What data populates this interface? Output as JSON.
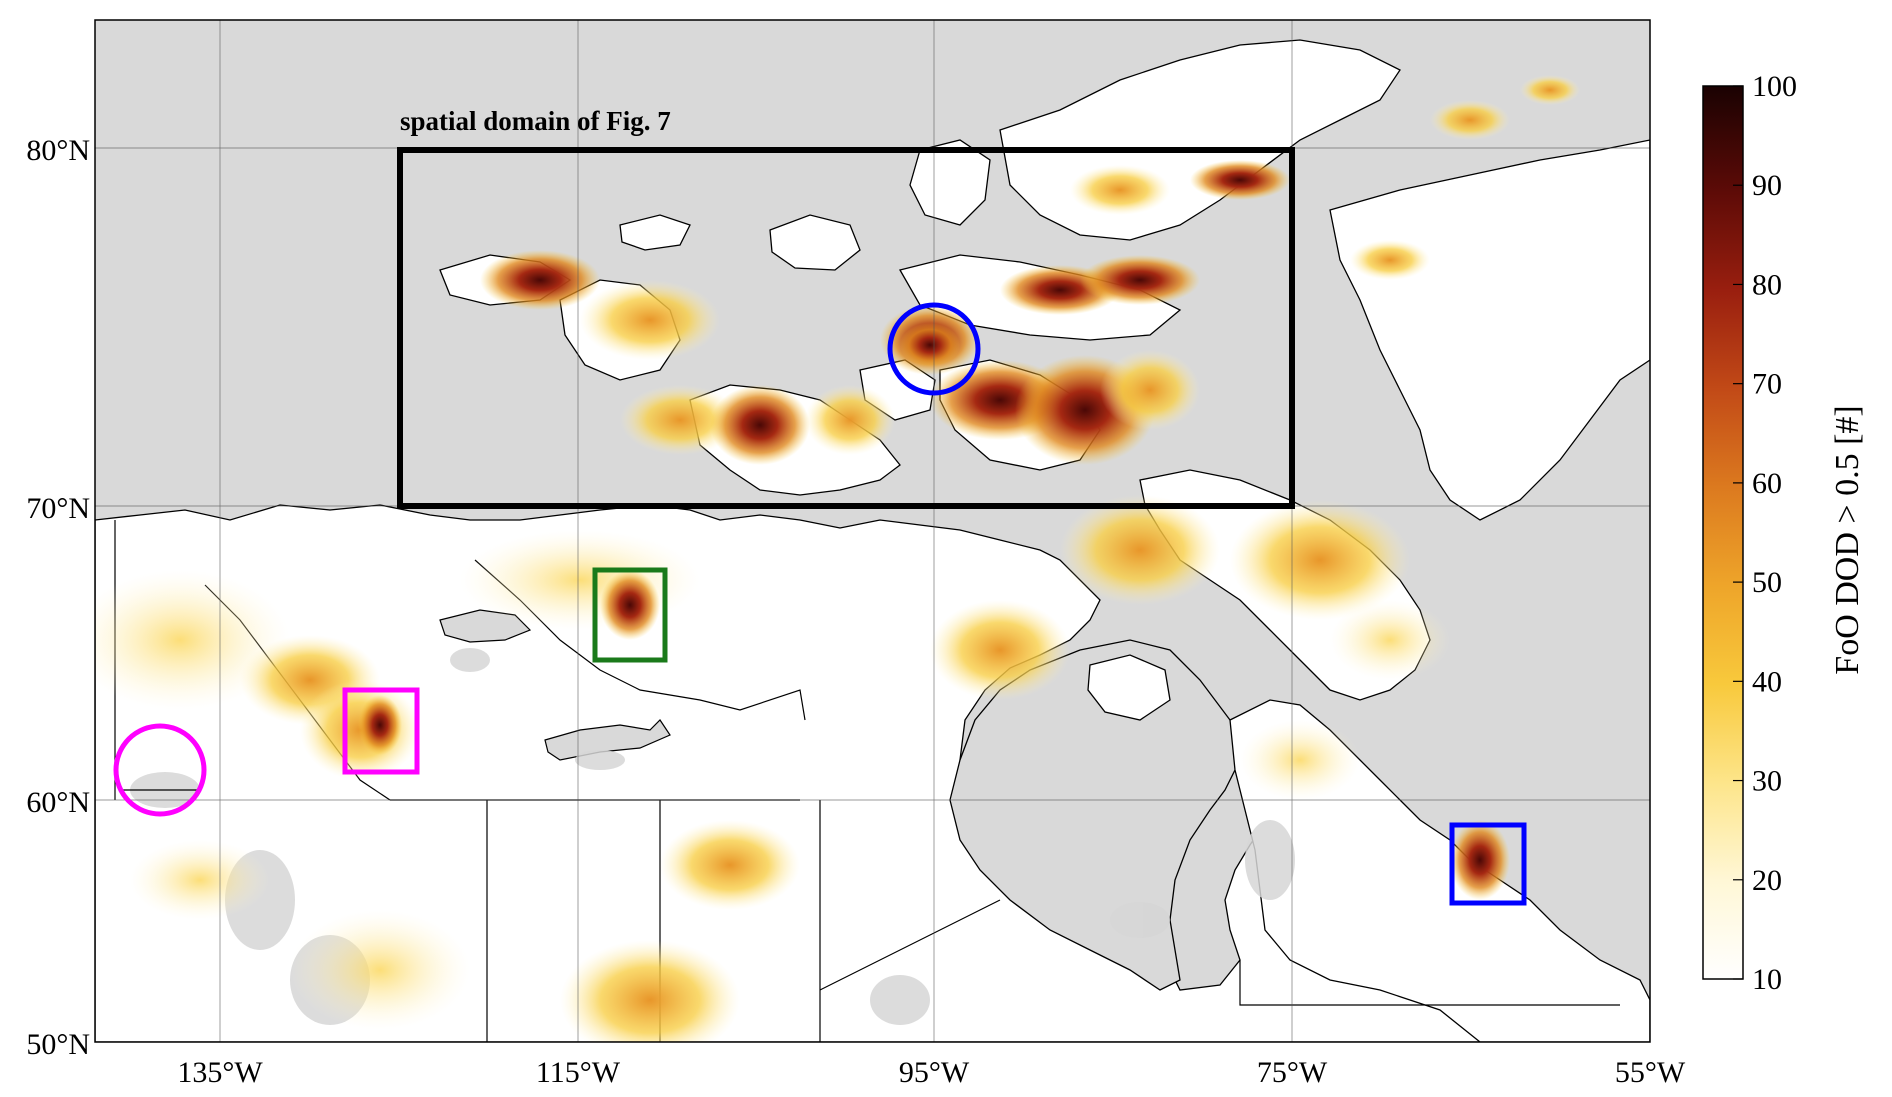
{
  "map": {
    "annotation_label": "spatial domain of Fig. 7",
    "lat_ticks": [
      "80°N",
      "70°N",
      "60°N",
      "50°N"
    ],
    "lon_ticks": [
      "135°W",
      "115°W",
      "95°W",
      "75°W",
      "55°W"
    ],
    "colors": {
      "land_low_value": "#ffffff",
      "ocean_and_nodata": "#d9d9d9",
      "domain_box": "#000000",
      "magenta_markers": "#ff00ff",
      "blue_markers": "#0000ff",
      "green_marker": "#1a7a1a"
    }
  },
  "colorbar": {
    "label": "FoO DOD > 0.5 [#]",
    "ticks": [
      "100",
      "90",
      "80",
      "70",
      "60",
      "50",
      "40",
      "30",
      "20",
      "10"
    ],
    "range": [
      10,
      100
    ],
    "colormap": [
      "#ffffff",
      "#fff7d6",
      "#fde58a",
      "#f8c93c",
      "#eea52a",
      "#dc7a1f",
      "#c24a17",
      "#9a1f0f",
      "#5e0b07",
      "#1a0202"
    ]
  }
}
